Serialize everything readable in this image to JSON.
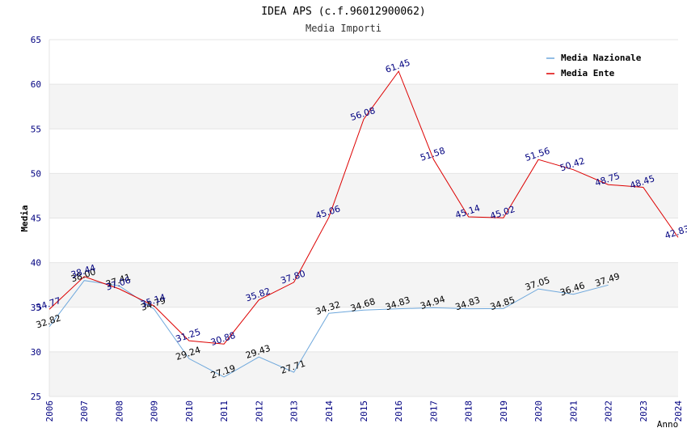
{
  "chart_data": {
    "type": "line",
    "title": "IDEA APS (c.f.96012900062)",
    "subtitle": "Media Importi",
    "xlabel": "Anno",
    "ylabel": "Media",
    "ylim": [
      25,
      65
    ],
    "yticks": [
      25,
      30,
      35,
      40,
      45,
      50,
      55,
      60,
      65
    ],
    "x": [
      "2006",
      "2007",
      "2008",
      "2009",
      "2010",
      "2011",
      "2012",
      "2013",
      "2014",
      "2015",
      "2016",
      "2017",
      "2018",
      "2019",
      "2020",
      "2021",
      "2022",
      "2023",
      "2024"
    ],
    "series": [
      {
        "name": "Media Nazionale",
        "color": "#6fa8dc",
        "values": [
          32.82,
          38.0,
          37.41,
          34.79,
          29.24,
          27.19,
          29.43,
          27.71,
          34.32,
          34.68,
          34.83,
          34.94,
          34.83,
          34.85,
          37.05,
          36.46,
          37.49,
          null,
          null
        ],
        "labels": [
          "32.82",
          "38.00",
          "37.41",
          "34.79",
          "29.24",
          "27.19",
          "29.43",
          "27.71",
          "34.32",
          "34.68",
          "34.83",
          "34.94",
          "34.83",
          "34.85",
          "37.05",
          "36.46",
          "37.49",
          null,
          null
        ]
      },
      {
        "name": "Media Ente",
        "color": "#dd0000",
        "values": [
          34.77,
          38.44,
          37.06,
          35.14,
          31.25,
          30.88,
          35.82,
          37.8,
          45.06,
          56.08,
          61.45,
          51.58,
          45.14,
          45.02,
          51.56,
          50.42,
          48.75,
          48.45,
          42.83
        ],
        "labels": [
          "34.77",
          "38.44",
          "37.06",
          "35.14",
          "31.25",
          "30.88",
          "35.82",
          "37.80",
          "45.06",
          "56.08",
          "61.45",
          "51.58",
          "45.14",
          "45.02",
          "51.56",
          "50.42",
          "48.75",
          "48.45",
          "42.83"
        ]
      }
    ],
    "legend": {
      "position": "top-right"
    },
    "grid": "horizontal alternating bands"
  }
}
